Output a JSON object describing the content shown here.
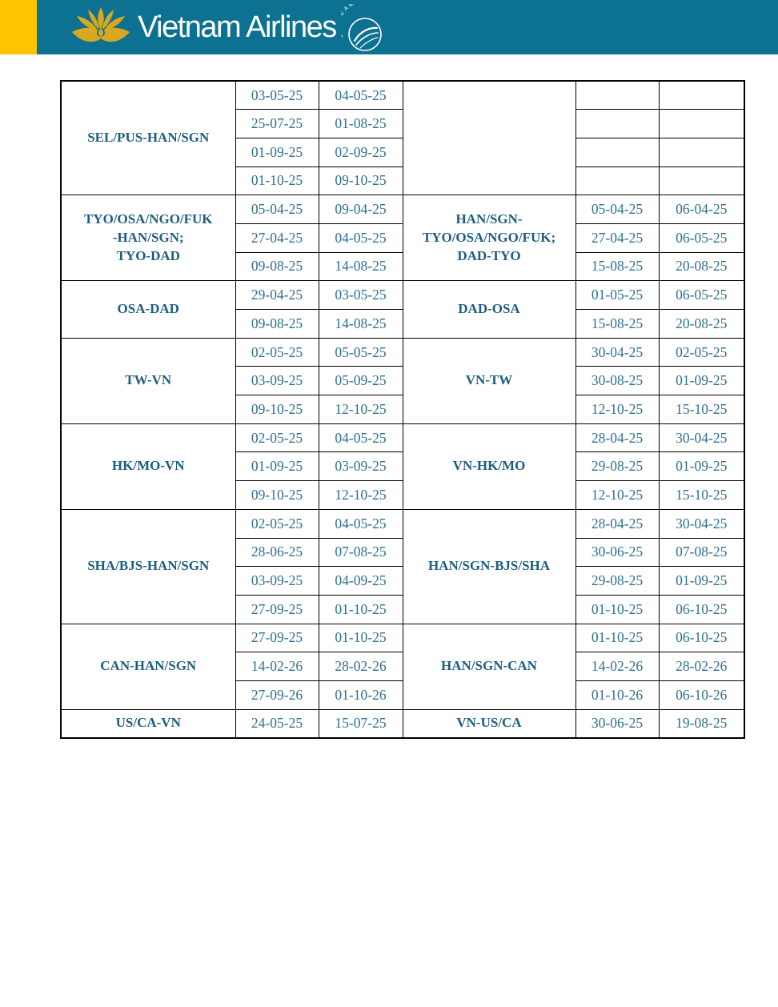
{
  "header": {
    "brand": "Vietnam Airlines",
    "skyteam_label": "SKYTEAM",
    "colors": {
      "teal": "#0d7191",
      "yellow": "#ffc400",
      "lotus_gold": "#d8a820",
      "route_text": "#1b5e7f",
      "date_text": "#2e6f8f",
      "border": "#000000"
    }
  },
  "table": {
    "groups": [
      {
        "outbound": {
          "route": "SEL/PUS-HAN/SGN",
          "dates": [
            [
              "03-05-25",
              "04-05-25"
            ],
            [
              "25-07-25",
              "01-08-25"
            ],
            [
              "01-09-25",
              "02-09-25"
            ],
            [
              "01-10-25",
              "09-10-25"
            ]
          ]
        },
        "inbound": {
          "route": "",
          "dates": [
            [
              "",
              ""
            ],
            [
              "",
              ""
            ],
            [
              "",
              ""
            ],
            [
              "",
              ""
            ]
          ]
        }
      },
      {
        "outbound": {
          "route": "TYO/OSA/NGO/FUK\n-HAN/SGN;\nTYO-DAD",
          "dates": [
            [
              "05-04-25",
              "09-04-25"
            ],
            [
              "27-04-25",
              "04-05-25"
            ],
            [
              "09-08-25",
              "14-08-25"
            ]
          ]
        },
        "inbound": {
          "route": "HAN/SGN-\nTYO/OSA/NGO/FUK;\nDAD-TYO",
          "dates": [
            [
              "05-04-25",
              "06-04-25"
            ],
            [
              "27-04-25",
              "06-05-25"
            ],
            [
              "15-08-25",
              "20-08-25"
            ]
          ]
        }
      },
      {
        "outbound": {
          "route": "OSA-DAD",
          "dates": [
            [
              "29-04-25",
              "03-05-25"
            ],
            [
              "09-08-25",
              "14-08-25"
            ]
          ]
        },
        "inbound": {
          "route": "DAD-OSA",
          "dates": [
            [
              "01-05-25",
              "06-05-25"
            ],
            [
              "15-08-25",
              "20-08-25"
            ]
          ]
        }
      },
      {
        "outbound": {
          "route": "TW-VN",
          "dates": [
            [
              "02-05-25",
              "05-05-25"
            ],
            [
              "03-09-25",
              "05-09-25"
            ],
            [
              "09-10-25",
              "12-10-25"
            ]
          ]
        },
        "inbound": {
          "route": "VN-TW",
          "dates": [
            [
              "30-04-25",
              "02-05-25"
            ],
            [
              "30-08-25",
              "01-09-25"
            ],
            [
              "12-10-25",
              "15-10-25"
            ]
          ]
        }
      },
      {
        "outbound": {
          "route": "HK/MO-VN",
          "dates": [
            [
              "02-05-25",
              "04-05-25"
            ],
            [
              "01-09-25",
              "03-09-25"
            ],
            [
              "09-10-25",
              "12-10-25"
            ]
          ]
        },
        "inbound": {
          "route": "VN-HK/MO",
          "dates": [
            [
              "28-04-25",
              "30-04-25"
            ],
            [
              "29-08-25",
              "01-09-25"
            ],
            [
              "12-10-25",
              "15-10-25"
            ]
          ]
        }
      },
      {
        "outbound": {
          "route": "SHA/BJS-HAN/SGN",
          "dates": [
            [
              "02-05-25",
              "04-05-25"
            ],
            [
              "28-06-25",
              "07-08-25"
            ],
            [
              "03-09-25",
              "04-09-25"
            ],
            [
              "27-09-25",
              "01-10-25"
            ]
          ]
        },
        "inbound": {
          "route": "HAN/SGN-BJS/SHA",
          "dates": [
            [
              "28-04-25",
              "30-04-25"
            ],
            [
              "30-06-25",
              "07-08-25"
            ],
            [
              "29-08-25",
              "01-09-25"
            ],
            [
              "01-10-25",
              "06-10-25"
            ]
          ]
        }
      },
      {
        "outbound": {
          "route": "CAN-HAN/SGN",
          "dates": [
            [
              "27-09-25",
              "01-10-25"
            ],
            [
              "14-02-26",
              "28-02-26"
            ],
            [
              "27-09-26",
              "01-10-26"
            ]
          ]
        },
        "inbound": {
          "route": "HAN/SGN-CAN",
          "dates": [
            [
              "01-10-25",
              "06-10-25"
            ],
            [
              "14-02-26",
              "28-02-26"
            ],
            [
              "01-10-26",
              "06-10-26"
            ]
          ]
        }
      },
      {
        "outbound": {
          "route": "US/CA-VN",
          "dates": [
            [
              "24-05-25",
              "15-07-25"
            ]
          ]
        },
        "inbound": {
          "route": "VN-US/CA",
          "dates": [
            [
              "30-06-25",
              "19-08-25"
            ]
          ]
        }
      }
    ]
  }
}
